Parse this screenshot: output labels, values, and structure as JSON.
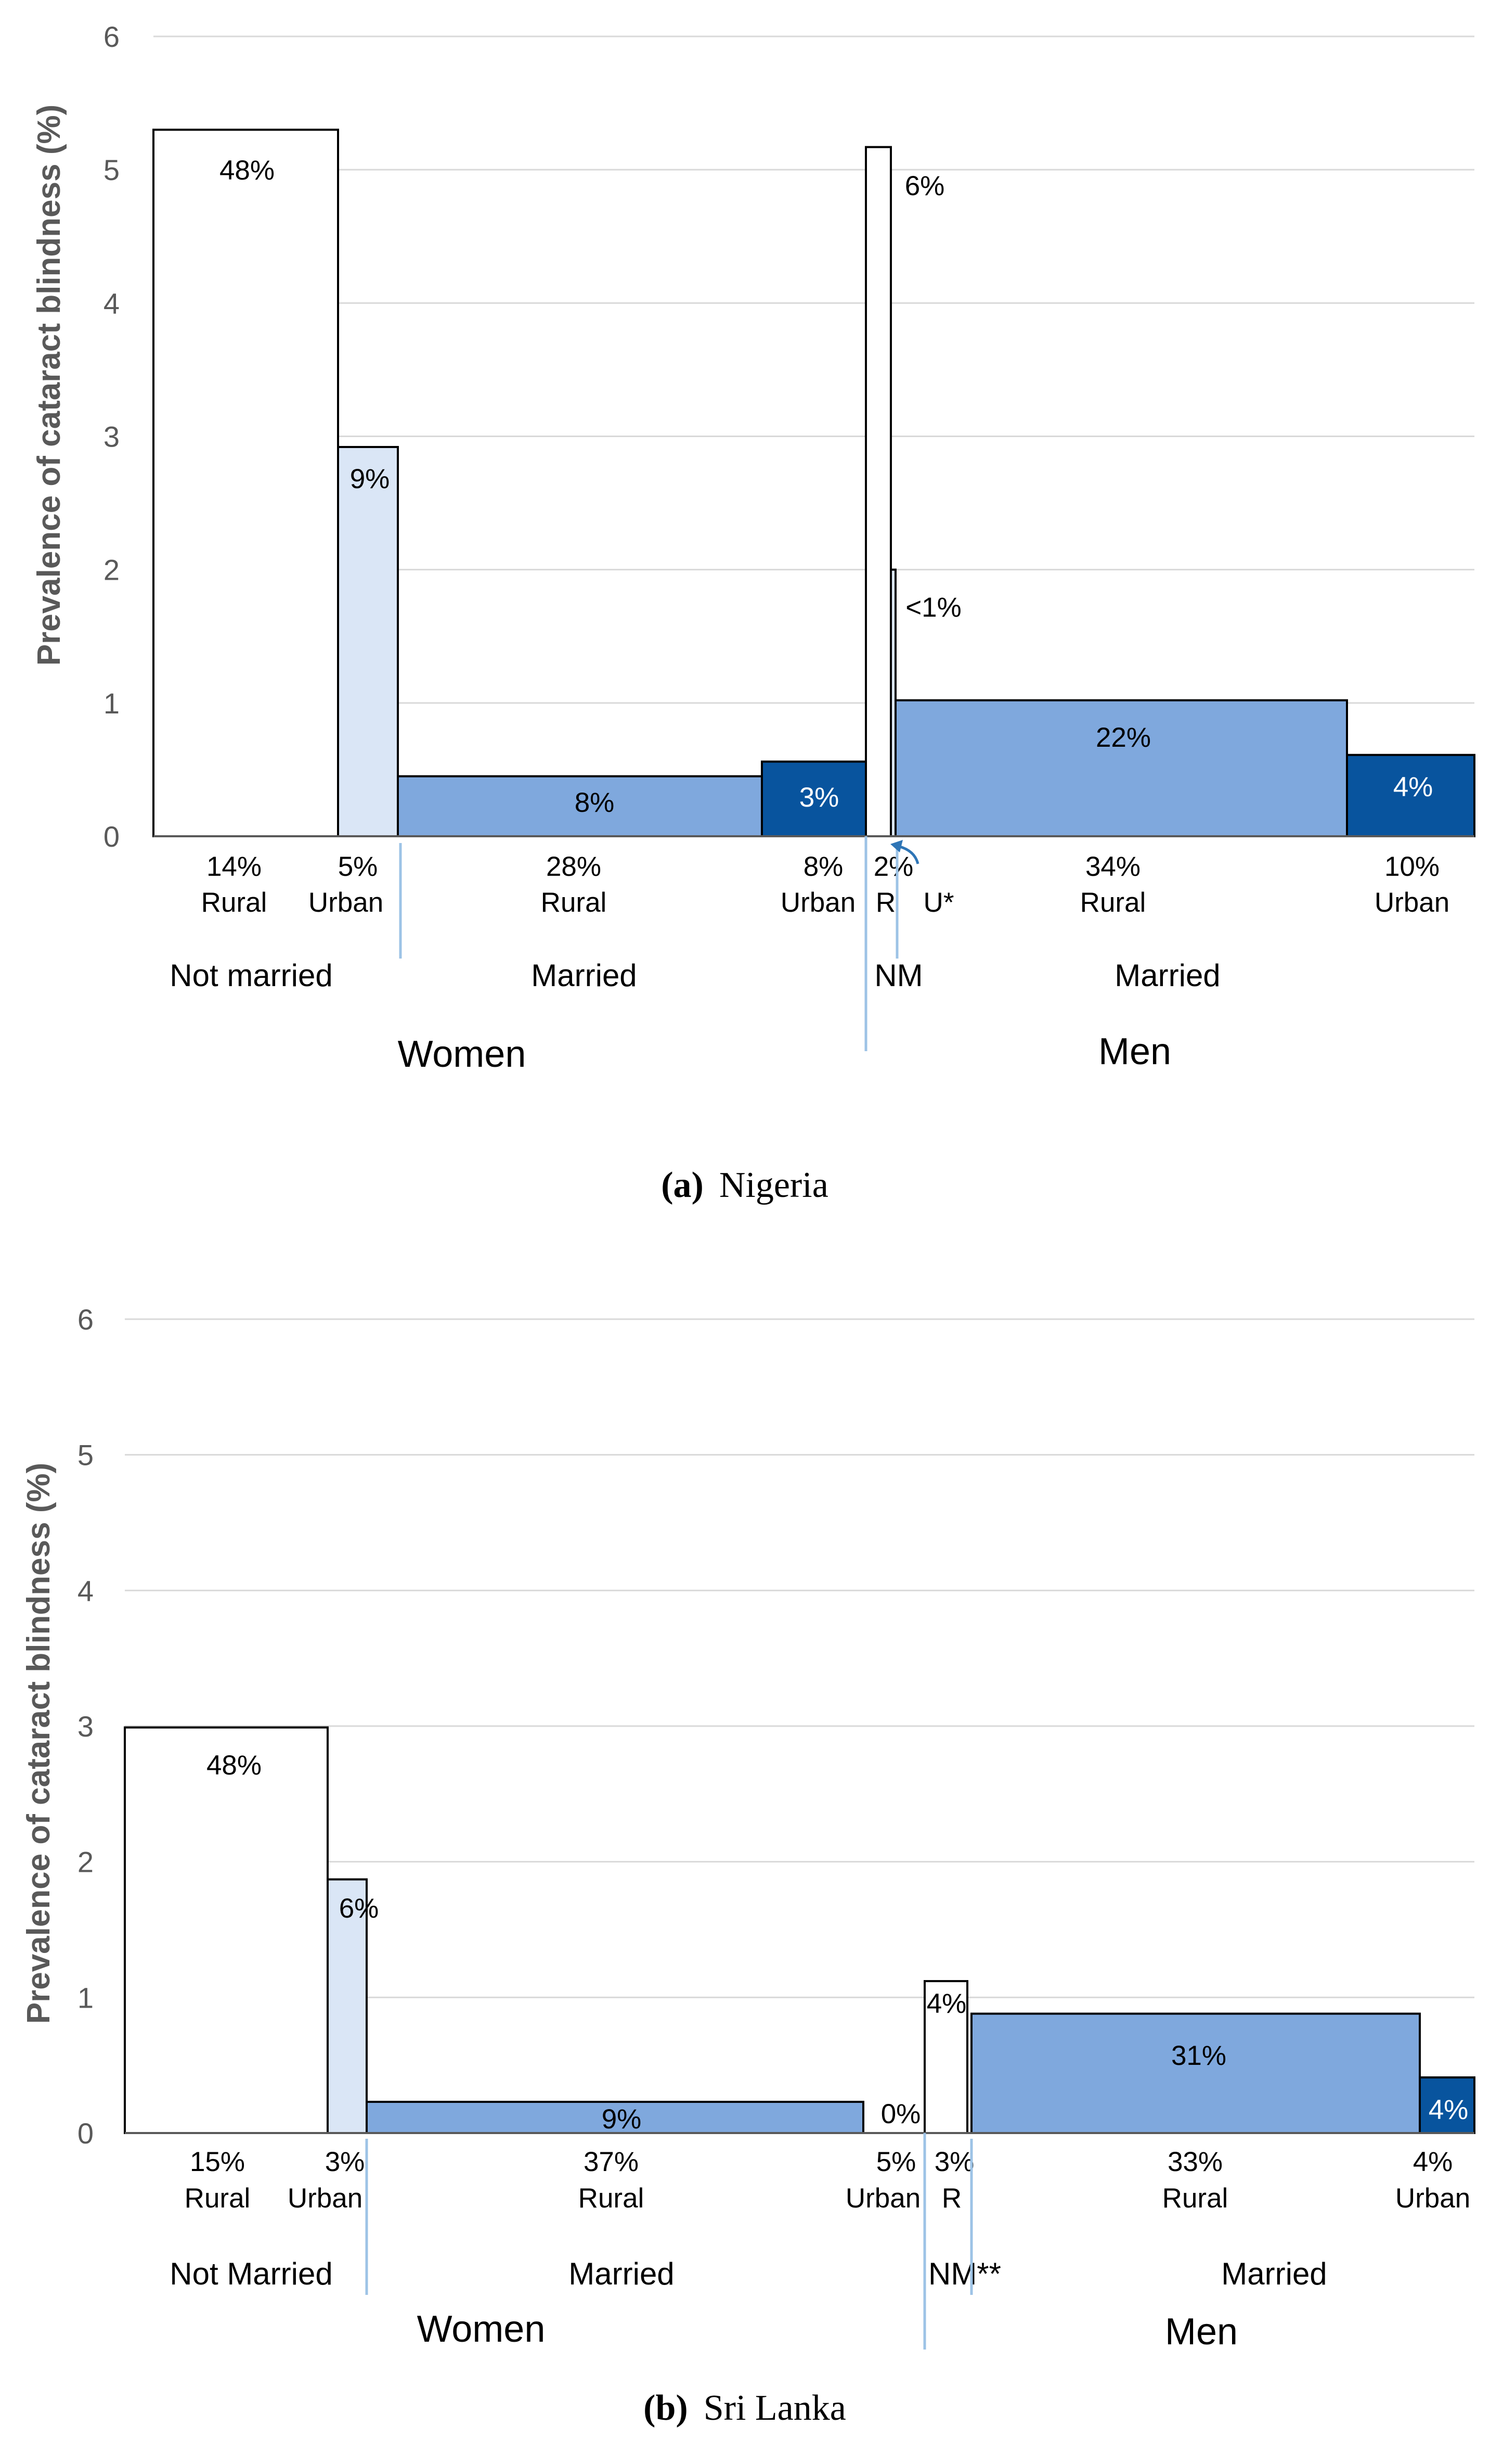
{
  "chart_data": [
    {
      "type": "bar",
      "panel": "a",
      "title": "Nigeria",
      "ylabel": "Prevalence of cataract blindness (%)",
      "ylim": [
        0,
        6
      ],
      "yticks": [
        "0",
        "1",
        "2",
        "3",
        "4",
        "5",
        "6"
      ],
      "grid": true,
      "sexes": [
        "Women",
        "Men"
      ],
      "groups": [
        "Not married",
        "Married",
        "NM",
        "Married"
      ],
      "bars": [
        {
          "sex": "Women",
          "marital": "Not married",
          "area": "Rural",
          "share": "14%",
          "area_label": "Rural",
          "value": 5.3,
          "label": "48%",
          "color": "#ffffff"
        },
        {
          "sex": "Women",
          "marital": "Not married",
          "area": "Urban",
          "share": "5%",
          "area_label": "Urban",
          "value": 2.92,
          "label": "9%",
          "color": "#dae6f6"
        },
        {
          "sex": "Women",
          "marital": "Married",
          "area": "Rural",
          "share": "28%",
          "area_label": "Rural",
          "value": 0.45,
          "label": "8%",
          "color": "#7fa8dd"
        },
        {
          "sex": "Women",
          "marital": "Married",
          "area": "Urban",
          "share": "8%",
          "area_label": "Urban",
          "value": 0.56,
          "label": "3%",
          "color": "#08549e"
        },
        {
          "sex": "Men",
          "marital": "NM",
          "area": "Rural",
          "share": "2%",
          "area_label": "R",
          "value": 5.17,
          "label": "6%",
          "color": "#ffffff"
        },
        {
          "sex": "Men",
          "marital": "NM",
          "area": "Urban",
          "share": "",
          "area_label": "U*",
          "value": 2.0,
          "label": "<1%",
          "color": "#dae6f6"
        },
        {
          "sex": "Men",
          "marital": "Married",
          "area": "Rural",
          "share": "34%",
          "area_label": "Rural",
          "value": 1.02,
          "label": "22%",
          "color": "#7fa8dd"
        },
        {
          "sex": "Men",
          "marital": "Married",
          "area": "Urban",
          "share": "10%",
          "area_label": "Urban",
          "value": 0.61,
          "label": "4%",
          "color": "#08549e"
        }
      ]
    },
    {
      "type": "bar",
      "panel": "b",
      "title": "Sri Lanka",
      "ylabel": "Prevalence of cataract blindness (%)",
      "ylim": [
        0,
        6
      ],
      "yticks": [
        "0",
        "1",
        "2",
        "3",
        "4",
        "5",
        "6"
      ],
      "grid": true,
      "sexes": [
        "Women",
        "Men"
      ],
      "groups": [
        "Not Married",
        "Married",
        "NM**",
        "Married"
      ],
      "bars": [
        {
          "sex": "Women",
          "marital": "Not Married",
          "area": "Rural",
          "share": "15%",
          "area_label": "Rural",
          "value": 2.99,
          "label": "48%",
          "color": "#ffffff"
        },
        {
          "sex": "Women",
          "marital": "Not Married",
          "area": "Urban",
          "share": "3%",
          "area_label": "Urban",
          "value": 1.87,
          "label": "6%",
          "color": "#dae6f6"
        },
        {
          "sex": "Women",
          "marital": "Married",
          "area": "Rural",
          "share": "37%",
          "area_label": "Rural",
          "value": 0.23,
          "label": "9%",
          "color": "#7fa8dd"
        },
        {
          "sex": "Women",
          "marital": "Married",
          "area": "Urban",
          "share": "5%",
          "area_label": "Urban",
          "value": 0,
          "label": "0%",
          "color": "#08549e"
        },
        {
          "sex": "Men",
          "marital": "NM**",
          "area": "Rural",
          "share": "3%",
          "area_label": "R",
          "value": 1.12,
          "label": "4%",
          "color": "#ffffff"
        },
        {
          "sex": "Men",
          "marital": "Married",
          "area": "Rural",
          "share": "33%",
          "area_label": "Rural",
          "value": 0.88,
          "label": "31%",
          "color": "#7fa8dd"
        },
        {
          "sex": "Men",
          "marital": "Married",
          "area": "Urban",
          "share": "4%",
          "area_label": "Urban",
          "value": 0.41,
          "label": "4%",
          "color": "#08549e"
        }
      ]
    }
  ]
}
